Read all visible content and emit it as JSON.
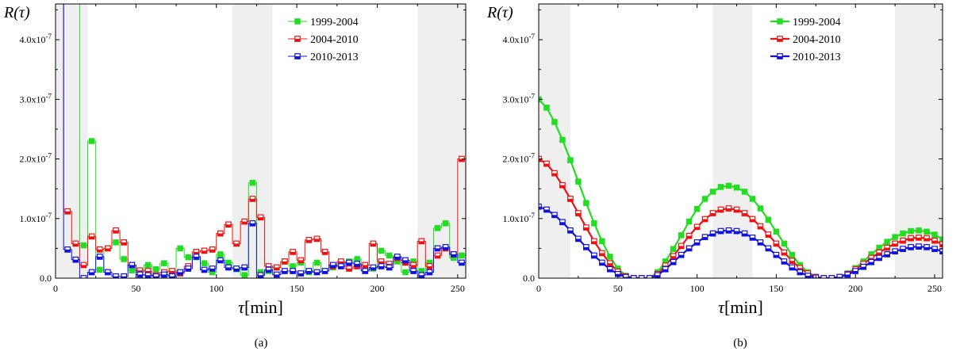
{
  "chart_data": [
    {
      "type": "line",
      "panel_label": "(a)",
      "xlabel_symbol": "τ",
      "xlabel_unit": "[min]",
      "ylabel": "R(τ)",
      "xlim": [
        0,
        255
      ],
      "ylim": [
        0,
        4.6e-07
      ],
      "x_ticks": [
        0,
        50,
        100,
        150,
        200,
        250
      ],
      "y_ticks": [
        0,
        1e-07,
        2e-07,
        3e-07,
        4e-07
      ],
      "y_tick_labels": [
        {
          "mant": "0.0",
          "exp": ""
        },
        {
          "mant": "1.0x10",
          "exp": "-7"
        },
        {
          "mant": "2.0x10",
          "exp": "-7"
        },
        {
          "mant": "3.0x10",
          "exp": "-7"
        },
        {
          "mant": "4.0x10",
          "exp": "-7"
        }
      ],
      "shaded_regions": [
        [
          0,
          20
        ],
        [
          110,
          135
        ],
        [
          225,
          255
        ]
      ],
      "step": true,
      "legend_position": "top-right",
      "series": [
        {
          "name": "1999-2004",
          "color": "#22dd22",
          "marker": "filled-square",
          "x": [
            0,
            5,
            10,
            15,
            20,
            25,
            30,
            35,
            40,
            45,
            50,
            55,
            60,
            65,
            70,
            75,
            80,
            85,
            90,
            95,
            100,
            105,
            110,
            115,
            120,
            125,
            130,
            135,
            140,
            145,
            150,
            155,
            160,
            165,
            170,
            175,
            180,
            185,
            190,
            195,
            200,
            205,
            210,
            215,
            220,
            225,
            230,
            235,
            240,
            245,
            250
          ],
          "y": [
            4.6e-07,
            4.6e-07,
            4.6e-07,
            5.5e-08,
            2.3e-07,
            1.4e-08,
            5e-08,
            6e-08,
            3.2e-08,
            1.3e-08,
            1e-08,
            2.2e-08,
            1.5e-08,
            2.5e-08,
            5e-09,
            5e-08,
            3.5e-08,
            3.5e-08,
            2.5e-08,
            1e-08,
            4e-08,
            2.6e-08,
            1.5e-08,
            5e-09,
            1.6e-07,
            1e-08,
            1.2e-08,
            1.8e-08,
            2.8e-08,
            2e-08,
            2.6e-08,
            1e-08,
            2.6e-08,
            1.2e-08,
            1.8e-08,
            2.6e-08,
            2.8e-08,
            3.2e-08,
            1.4e-08,
            1.6e-08,
            4.6e-08,
            3.8e-08,
            2.8e-08,
            1e-08,
            2.8e-08,
            1.2e-08,
            2.6e-08,
            8.4e-08,
            9.2e-08,
            3.4e-08,
            3.8e-08
          ]
        },
        {
          "name": "2004-2010",
          "color": "#ee1111",
          "marker": "half-square",
          "x": [
            0,
            5,
            10,
            15,
            20,
            25,
            30,
            35,
            40,
            45,
            50,
            55,
            60,
            65,
            70,
            75,
            80,
            85,
            90,
            95,
            100,
            105,
            110,
            115,
            120,
            125,
            130,
            135,
            140,
            145,
            150,
            155,
            160,
            165,
            170,
            175,
            180,
            185,
            190,
            195,
            200,
            205,
            210,
            215,
            220,
            225,
            230,
            235,
            240,
            245,
            250
          ],
          "y": [
            4.6e-07,
            1.12e-07,
            5.8e-08,
            2.2e-08,
            7e-08,
            4.8e-08,
            5e-08,
            8e-08,
            6e-08,
            2.2e-08,
            1.3e-08,
            1.2e-08,
            5e-09,
            1e-08,
            1.2e-08,
            8e-09,
            2e-08,
            4.4e-08,
            4.6e-08,
            4.8e-08,
            7.5e-08,
            9e-08,
            5.8e-08,
            9.5e-08,
            1.33e-07,
            1.02e-07,
            2e-08,
            1.8e-08,
            2.8e-08,
            4.4e-08,
            3e-08,
            6.4e-08,
            6.6e-08,
            4.4e-08,
            2e-08,
            2.8e-08,
            1.6e-08,
            2e-08,
            2.2e-08,
            5.8e-08,
            2.8e-08,
            2.4e-08,
            3.4e-08,
            2.6e-08,
            2.2e-08,
            6.2e-08,
            2e-08,
            3.8e-08,
            5e-08,
            4e-08,
            2e-07
          ]
        },
        {
          "name": "2010-2013",
          "color": "#1111dd",
          "marker": "half-square",
          "x": [
            0,
            5,
            10,
            15,
            20,
            25,
            30,
            35,
            40,
            45,
            50,
            55,
            60,
            65,
            70,
            75,
            80,
            85,
            90,
            95,
            100,
            105,
            110,
            115,
            120,
            125,
            130,
            135,
            140,
            145,
            150,
            155,
            160,
            165,
            170,
            175,
            180,
            185,
            190,
            195,
            200,
            205,
            210,
            215,
            220,
            225,
            230,
            235,
            240,
            245,
            250
          ],
          "y": [
            4.6e-07,
            4.8e-08,
            3.1e-08,
            0.0,
            1e-08,
            3.6e-08,
            1e-08,
            3e-09,
            3e-09,
            2.2e-08,
            6e-09,
            5e-09,
            3e-09,
            6e-09,
            3e-09,
            1e-08,
            1.6e-08,
            3.6e-08,
            1.4e-08,
            1.6e-08,
            3e-08,
            1.8e-08,
            1.6e-08,
            1.8e-08,
            9.2e-08,
            5e-09,
            1.4e-08,
            6e-09,
            1.2e-08,
            1.2e-08,
            8e-09,
            1.2e-08,
            1e-08,
            1.2e-08,
            2.2e-08,
            2e-08,
            2.6e-08,
            2.4e-08,
            1.2e-08,
            1.8e-08,
            2e-08,
            1.8e-08,
            3.6e-08,
            3e-08,
            1.2e-08,
            5e-09,
            1e-08,
            5e-08,
            5.2e-08,
            4e-08,
            2.6e-08
          ]
        }
      ]
    },
    {
      "type": "line",
      "panel_label": "(b)",
      "xlabel_symbol": "τ",
      "xlabel_unit": "[min]",
      "ylabel": "R(τ)",
      "xlim": [
        0,
        255
      ],
      "ylim": [
        0,
        4.6e-07
      ],
      "x_ticks": [
        0,
        50,
        100,
        150,
        200,
        250
      ],
      "y_ticks": [
        0,
        1e-07,
        2e-07,
        3e-07,
        4e-07
      ],
      "y_tick_labels": [
        {
          "mant": "0.0",
          "exp": ""
        },
        {
          "mant": "1.0x10",
          "exp": "-7"
        },
        {
          "mant": "2.0x10",
          "exp": "-7"
        },
        {
          "mant": "3.0x10",
          "exp": "-7"
        },
        {
          "mant": "4.0x10",
          "exp": "-7"
        }
      ],
      "shaded_regions": [
        [
          0,
          20
        ],
        [
          110,
          135
        ],
        [
          225,
          255
        ]
      ],
      "step": false,
      "legend_position": "top-right",
      "series": [
        {
          "name": "1999-2004",
          "color": "#22dd22",
          "marker": "filled-square",
          "x": [
            0,
            5,
            10,
            15,
            20,
            25,
            30,
            35,
            40,
            45,
            50,
            55,
            60,
            65,
            70,
            75,
            80,
            85,
            90,
            95,
            100,
            105,
            110,
            115,
            120,
            125,
            130,
            135,
            140,
            145,
            150,
            155,
            160,
            165,
            170,
            175,
            180,
            185,
            190,
            195,
            200,
            205,
            210,
            215,
            220,
            225,
            230,
            235,
            240,
            245,
            250,
            255
          ],
          "y": [
            3e-07,
            2.86e-07,
            2.62e-07,
            2.32e-07,
            1.98e-07,
            1.62e-07,
            1.26e-07,
            9.2e-08,
            6.2e-08,
            3.6e-08,
            1.6e-08,
            4e-09,
            0,
            0,
            0,
            1e-08,
            2.8e-08,
            4.9e-08,
            7.2e-08,
            9.5e-08,
            1.16e-07,
            1.33e-07,
            1.45e-07,
            1.53e-07,
            1.55e-07,
            1.52e-07,
            1.45e-07,
            1.33e-07,
            1.17e-07,
            9.8e-08,
            7.8e-08,
            5.8e-08,
            3.9e-08,
            2.2e-08,
            1e-08,
            2e-09,
            0,
            0,
            2e-09,
            8e-09,
            1.7e-08,
            2.8e-08,
            4e-08,
            5.1e-08,
            6.1e-08,
            6.9e-08,
            7.5e-08,
            7.9e-08,
            8e-08,
            7.8e-08,
            7.3e-08,
            6.5e-08
          ]
        },
        {
          "name": "2004-2010",
          "color": "#ee1111",
          "marker": "half-square",
          "x": [
            0,
            5,
            10,
            15,
            20,
            25,
            30,
            35,
            40,
            45,
            50,
            55,
            60,
            65,
            70,
            75,
            80,
            85,
            90,
            95,
            100,
            105,
            110,
            115,
            120,
            125,
            130,
            135,
            140,
            145,
            150,
            155,
            160,
            165,
            170,
            175,
            180,
            185,
            190,
            195,
            200,
            205,
            210,
            215,
            220,
            225,
            230,
            235,
            240,
            245,
            250,
            255
          ],
          "y": [
            2e-07,
            1.92e-07,
            1.76e-07,
            1.56e-07,
            1.33e-07,
            1.09e-07,
            8.5e-08,
            6.2e-08,
            4.2e-08,
            2.5e-08,
            1.1e-08,
            3e-09,
            0,
            0,
            0,
            7e-09,
            2.1e-08,
            3.7e-08,
            5.4e-08,
            7.1e-08,
            8.6e-08,
            9.9e-08,
            1.09e-07,
            1.15e-07,
            1.17e-07,
            1.15e-07,
            1.09e-07,
            9.9e-08,
            8.7e-08,
            7.3e-08,
            5.8e-08,
            4.3e-08,
            2.9e-08,
            1.7e-08,
            8e-09,
            2e-09,
            0,
            0,
            2e-09,
            7e-09,
            1.5e-08,
            2.4e-08,
            3.4e-08,
            4.3e-08,
            5.1e-08,
            5.8e-08,
            6.3e-08,
            6.7e-08,
            6.8e-08,
            6.7e-08,
            6.3e-08,
            5.7e-08
          ]
        },
        {
          "name": "2010-2013",
          "color": "#1111dd",
          "marker": "half-square",
          "x": [
            0,
            5,
            10,
            15,
            20,
            25,
            30,
            35,
            40,
            45,
            50,
            55,
            60,
            65,
            70,
            75,
            80,
            85,
            90,
            95,
            100,
            105,
            110,
            115,
            120,
            125,
            130,
            135,
            140,
            145,
            150,
            155,
            160,
            165,
            170,
            175,
            180,
            185,
            190,
            195,
            200,
            205,
            210,
            215,
            220,
            225,
            230,
            235,
            240,
            245,
            250,
            255
          ],
          "y": [
            1.2e-07,
            1.15e-07,
            1.06e-07,
            9.4e-08,
            8e-08,
            6.6e-08,
            5.2e-08,
            3.8e-08,
            2.6e-08,
            1.5e-08,
            7e-09,
            2e-09,
            0,
            0,
            0,
            5e-09,
            1.5e-08,
            2.7e-08,
            3.9e-08,
            5e-08,
            6e-08,
            6.9e-08,
            7.5e-08,
            7.9e-08,
            8e-08,
            7.9e-08,
            7.5e-08,
            6.8e-08,
            6e-08,
            5e-08,
            3.9e-08,
            2.8e-08,
            1.8e-08,
            1e-08,
            4e-09,
            1e-09,
            0,
            0,
            2e-09,
            6e-09,
            1.2e-08,
            1.9e-08,
            2.7e-08,
            3.4e-08,
            4e-08,
            4.5e-08,
            4.9e-08,
            5.2e-08,
            5.3e-08,
            5.2e-08,
            4.9e-08,
            4.5e-08
          ]
        }
      ]
    }
  ]
}
